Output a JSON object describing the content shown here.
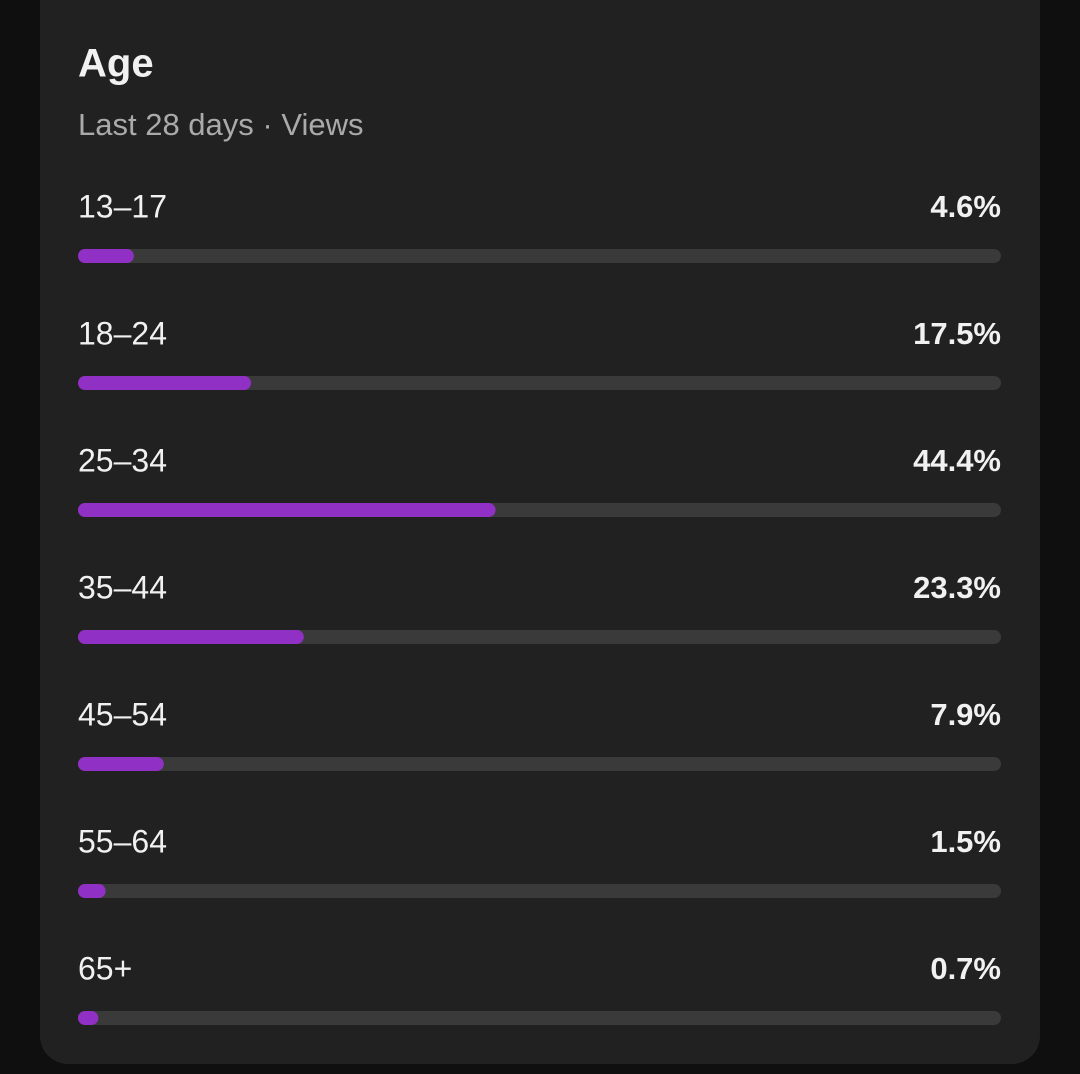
{
  "chart_data": {
    "type": "bar",
    "orientation": "horizontal",
    "title": "Age",
    "subtitle": "Last 28 days · Views",
    "categories": [
      "13–17",
      "18–24",
      "25–34",
      "35–44",
      "45–54",
      "55–64",
      "65+"
    ],
    "values": [
      4.6,
      17.5,
      44.4,
      23.3,
      7.9,
      1.5,
      0.7
    ],
    "value_labels": [
      "4.6%",
      "17.5%",
      "44.4%",
      "23.3%",
      "7.9%",
      "1.5%",
      "0.7%"
    ],
    "xlim": [
      0,
      100
    ],
    "color": "#9130c4",
    "track_color": "#3a3a3a"
  }
}
